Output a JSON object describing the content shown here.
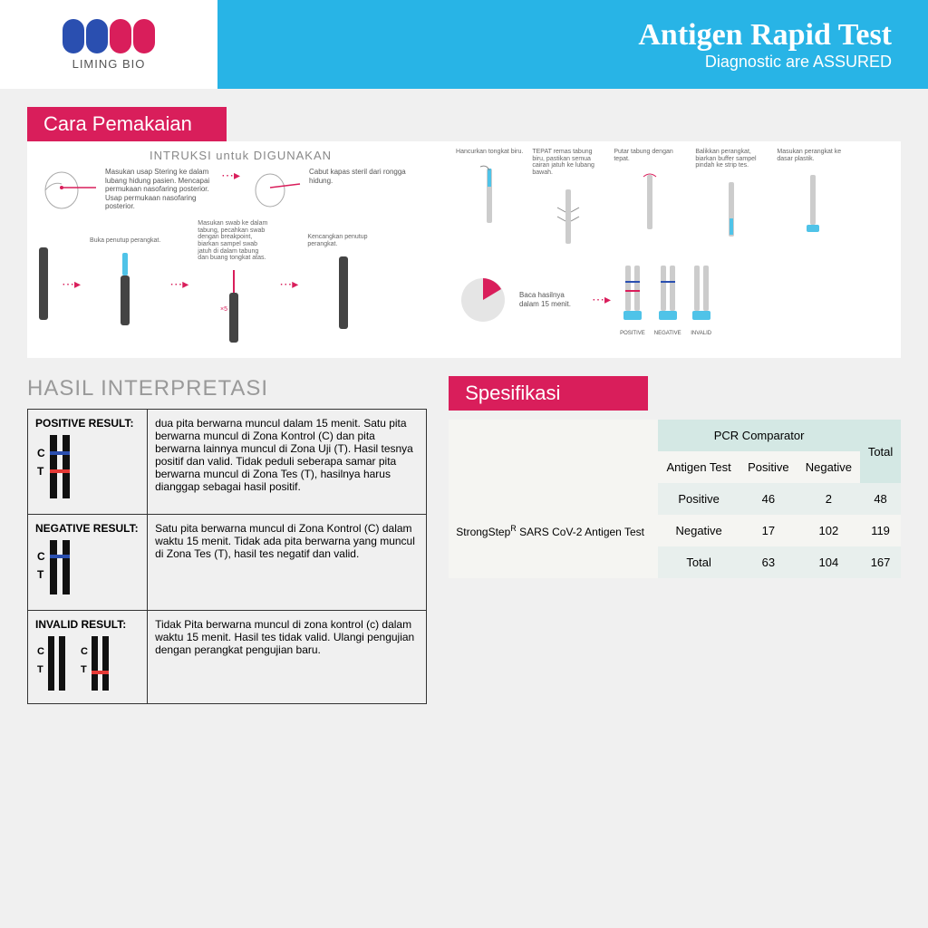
{
  "colors": {
    "header_bg": "#28b4e6",
    "accent_pink": "#d91e5b",
    "logo_blue": "#2a4fb0",
    "logo_pink": "#d91e5b",
    "text_gray": "#888888",
    "table_green1": "#d4e8e4",
    "table_green2": "#e8efed",
    "table_light": "#f5f5f2"
  },
  "logo": {
    "text": "LIMING BIO"
  },
  "header": {
    "title": "Antigen Rapid Test",
    "subtitle": "Diagnostic are ASSURED"
  },
  "usage": {
    "title": "Cara Pemakaian",
    "subtitle": "INTRUKSI untuk DIGUNAKAN",
    "step1": "Masukan usap Stering ke dalam lubang hidung pasien. Mencapai permukaan nasofaring posterior. Usap permukaan nasofaring posterior.",
    "step2": "Cabut kapas steril dari rongga hidung.",
    "step3": "Buka penutup perangkat.",
    "step4": "Masukan swab ke dalam tabung, pecahkan swab dengan breakpoint, biarkan sampel swab jatuh di dalam tabung dan buang tongkat atas.",
    "step5": "Kencangkan penutup perangkat.",
    "r1": "Hancurkan tongkat biru.",
    "r2": "TEPAT remas tabung biru, pastikan semua cairan jatuh ke lubang bawah.",
    "r3": "Putar tabung dengan tepat.",
    "r4": "Balikkan perangkat, biarkan buffer sampel pindah ke strip tes.",
    "r5": "Masukan perangkat ke dasar plastik.",
    "r6": "Baca hasilnya dalam 15 menit.",
    "res_pos": "POSITIVE",
    "res_neg": "NEGATIVE",
    "res_inv": "INVALID"
  },
  "interp": {
    "title": "HASIL INTERPRETASI",
    "positive_label": "POSITIVE RESULT:",
    "positive_text": "dua pita berwarna muncul dalam 15 menit. Satu pita berwarna muncul di Zona Kontrol (C) dan pita berwarna lainnya muncul di Zona Uji (T). Hasil tesnya positif dan valid. Tidak peduli seberapa samar pita berwarna muncul di Zona Tes (T), hasilnya harus dianggap sebagai hasil positif.",
    "negative_label": "NEGATIVE RESULT:",
    "negative_text": "Satu pita berwarna muncul di Zona Kontrol (C) dalam waktu 15 menit. Tidak ada pita berwarna yang muncul di Zona Tes (T), hasil tes negatif dan valid.",
    "invalid_label": "INVALID RESULT:",
    "invalid_text": "Tidak Pita berwarna muncul di zona kontrol (c) dalam waktu 15 menit. Hasil tes tidak valid. Ulangi pengujian dengan perangkat pengujian baru."
  },
  "spec": {
    "title": "Spesifikasi",
    "table": {
      "comparator_header": "PCR Comparator",
      "row_header_html": "StrongStep<span class='sup'>R</span> SARS CoV-2 Antigen Test",
      "col_antigen": "Antigen Test",
      "col_pos": "Positive",
      "col_neg": "Negative",
      "col_total": "Total",
      "rows": [
        {
          "label": "Positive",
          "pos": "46",
          "neg": "2",
          "total": "48"
        },
        {
          "label": "Negative",
          "pos": "17",
          "neg": "102",
          "total": "119"
        },
        {
          "label": "Total",
          "pos": "63",
          "neg": "104",
          "total": "167"
        }
      ]
    }
  }
}
